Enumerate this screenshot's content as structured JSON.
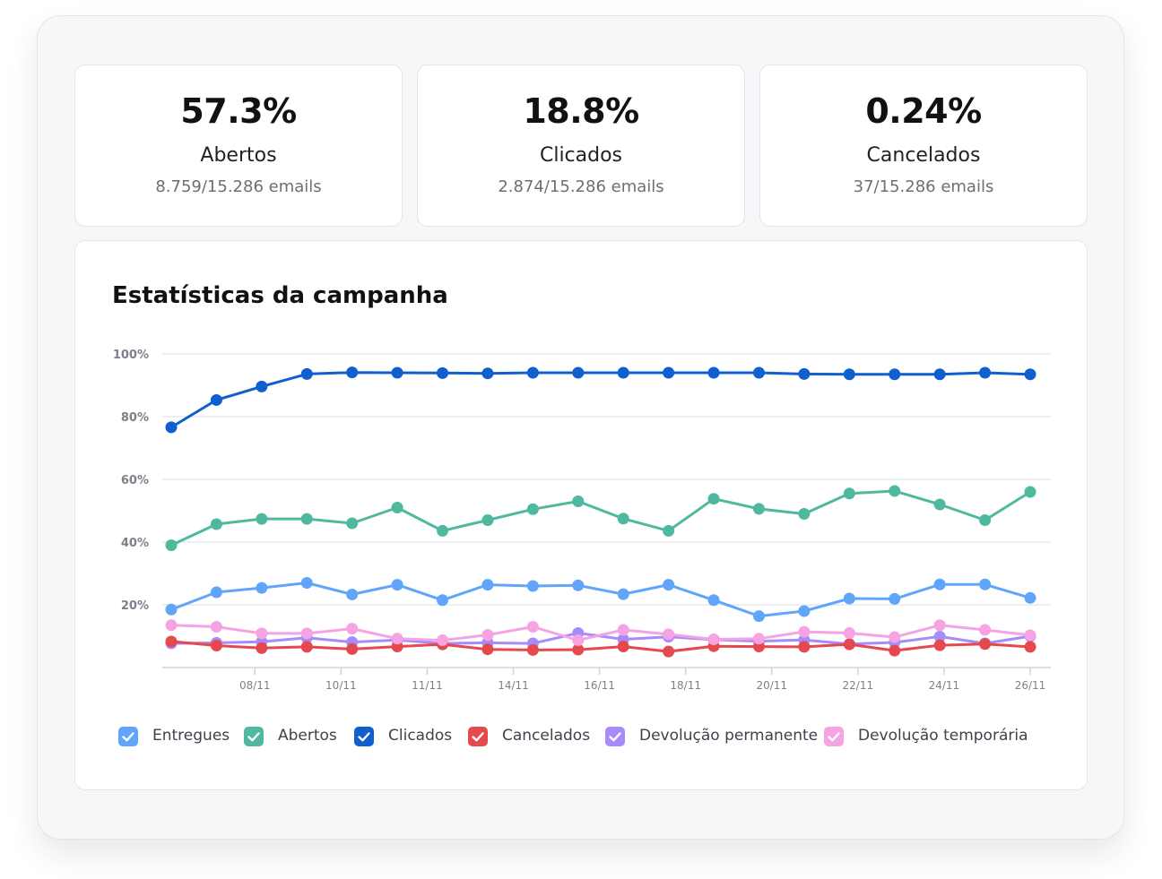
{
  "stats": [
    {
      "value": "57.3%",
      "label": "Abertos",
      "sub": "8.759/15.286 emails"
    },
    {
      "value": "18.8%",
      "label": "Clicados",
      "sub": "2.874/15.286 emails"
    },
    {
      "value": "0.24%",
      "label": "Cancelados",
      "sub": "37/15.286 emails"
    }
  ],
  "chart_title": "Estatísticas da campanha",
  "chart_data": {
    "type": "line",
    "title": "Estatísticas da campanha",
    "xlabel": "",
    "ylabel": "",
    "ylim": [
      0,
      100
    ],
    "y_ticks": [
      "20%",
      "40%",
      "60%",
      "80%",
      "100%"
    ],
    "x_ticks": [
      "08/11",
      "10/11",
      "11/11",
      "14/11",
      "16/11",
      "18/11",
      "20/11",
      "22/11",
      "24/11",
      "26/11"
    ],
    "grid": true,
    "legend_position": "bottom",
    "series": [
      {
        "name": "Entregues",
        "color": "#60a5fa",
        "values": [
          18.5,
          24,
          25.4,
          27,
          23.3,
          26.4,
          21.5,
          26.4,
          26,
          26.2,
          23.4,
          26.4,
          21.5,
          16.4,
          18,
          22,
          21.9,
          26.5,
          26.5,
          22.2
        ]
      },
      {
        "name": "Abertos",
        "color": "#4fb99f",
        "values": [
          39,
          45.7,
          47.4,
          47.4,
          46,
          51,
          43.6,
          47,
          50.5,
          53,
          47.5,
          43.6,
          53.8,
          50.6,
          49,
          55.5,
          56.3,
          52,
          47,
          56
        ]
      },
      {
        "name": "Clicados",
        "color": "#0f5fcf",
        "values": [
          76.6,
          85.3,
          89.6,
          93.6,
          94.1,
          94,
          93.9,
          93.8,
          94,
          94,
          94,
          94,
          94,
          94,
          93.6,
          93.5,
          93.5,
          93.5,
          94,
          93.5
        ]
      },
      {
        "name": "Cancelados",
        "color": "#e5484d",
        "values": [
          8.3,
          7,
          6.2,
          6.6,
          5.9,
          6.7,
          7.4,
          5.8,
          5.6,
          5.7,
          6.7,
          5.1,
          6.8,
          6.7,
          6.6,
          7.4,
          5.4,
          7.1,
          7.5,
          6.6
        ]
      },
      {
        "name": "Devolução permanente",
        "color": "#a78bfa",
        "values": [
          7.7,
          7.9,
          8.2,
          9.5,
          8.1,
          8.8,
          7.7,
          7.9,
          7.7,
          11,
          9,
          9.8,
          8.9,
          8.4,
          8.8,
          7.5,
          8,
          9.9,
          7.7,
          10
        ]
      },
      {
        "name": "Devolução temporária",
        "color": "#f5a3e3",
        "values": [
          13.5,
          13,
          10.9,
          10.9,
          12.4,
          9.2,
          8.7,
          10.4,
          13,
          8.7,
          12,
          10.6,
          9,
          9.2,
          11.4,
          11,
          9.7,
          13.5,
          12,
          10.3
        ]
      }
    ]
  }
}
